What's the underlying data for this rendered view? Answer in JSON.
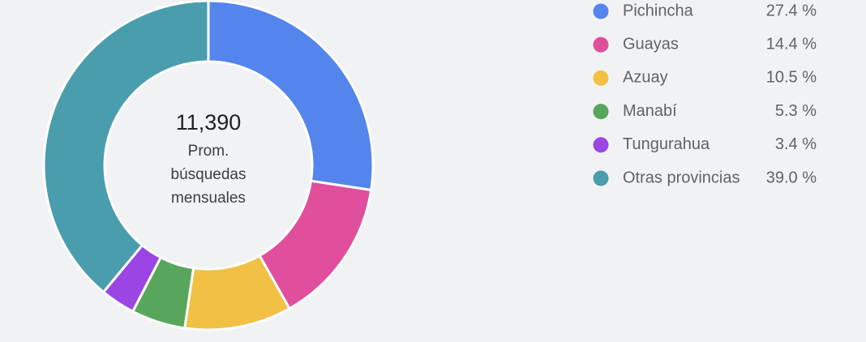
{
  "chart_data": {
    "type": "donut",
    "center_value": {
      "value": 11390,
      "label": "11,390"
    },
    "center_caption": "Prom. búsquedas mensuales",
    "categories": [
      "Pichincha",
      "Guayas",
      "Azuay",
      "Manabí",
      "Tungurahua",
      "Otras provincias"
    ],
    "values": [
      27.4,
      14.4,
      10.5,
      5.3,
      3.4,
      39.0
    ],
    "value_labels": [
      "27.4 %",
      "14.4 %",
      "10.5 %",
      "5.3 %",
      "3.4 %",
      "39.0 %"
    ],
    "colors": [
      "#5385ec",
      "#e04e9c",
      "#f1c044",
      "#58a65c",
      "#9b45e4",
      "#4a9dad"
    ]
  }
}
